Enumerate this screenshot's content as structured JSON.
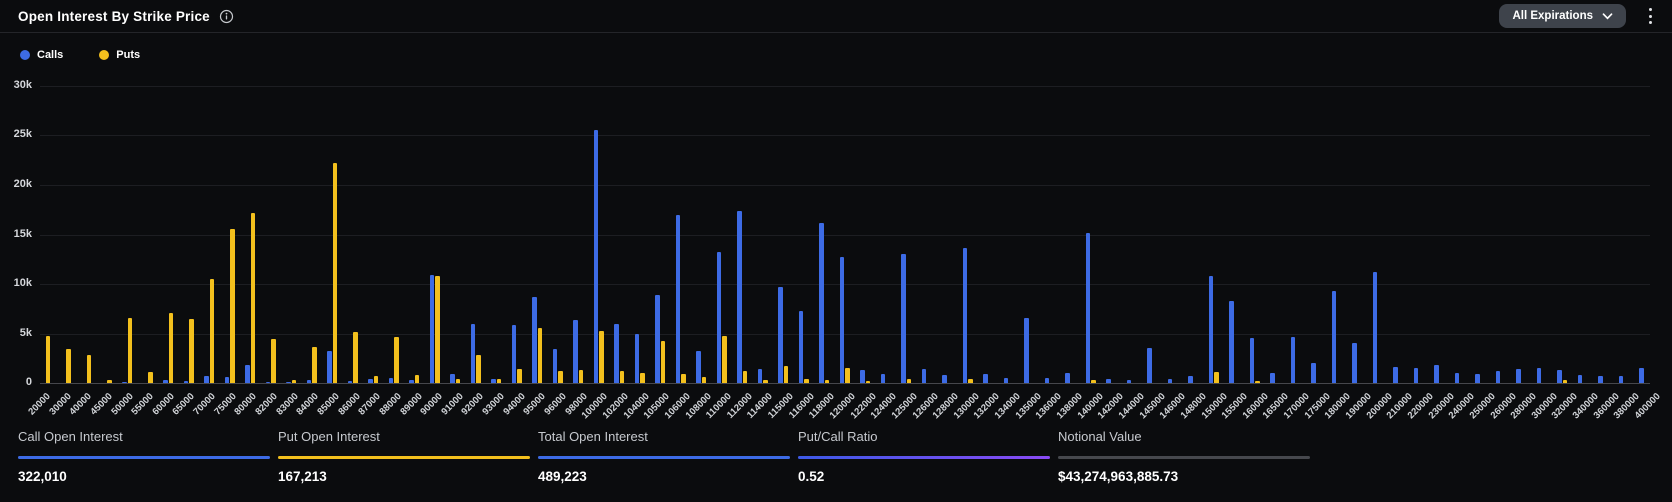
{
  "header": {
    "title": "Open Interest By Strike Price",
    "expirations_label": "All Expirations"
  },
  "legend": [
    {
      "label": "Calls",
      "color": "#3D6BE5"
    },
    {
      "label": "Puts",
      "color": "#F3C01D"
    }
  ],
  "colors": {
    "calls": "#3D6BE5",
    "puts": "#F3C01D",
    "background": "#0b0c0e",
    "gridline": "#1d1e22",
    "baseline": "#46474c"
  },
  "chart_data": {
    "type": "bar",
    "title": "Open Interest By Strike Price",
    "xlabel": "Strike Price",
    "ylabel": "Open Interest",
    "ylim": [
      0,
      30000
    ],
    "yticks": [
      "30k",
      "25k",
      "20k",
      "15k",
      "10k",
      "5k",
      "0"
    ],
    "grid": true,
    "legend_position": "top-left",
    "categories": [
      "20000",
      "30000",
      "40000",
      "45000",
      "50000",
      "55000",
      "60000",
      "65000",
      "70000",
      "75000",
      "80000",
      "82000",
      "83000",
      "84000",
      "85000",
      "86000",
      "87000",
      "88000",
      "89000",
      "90000",
      "91000",
      "92000",
      "93000",
      "94000",
      "95000",
      "96000",
      "98000",
      "100000",
      "102000",
      "104000",
      "105000",
      "106000",
      "108000",
      "110000",
      "112000",
      "114000",
      "115000",
      "116000",
      "118000",
      "120000",
      "122000",
      "124000",
      "125000",
      "126000",
      "128000",
      "130000",
      "132000",
      "134000",
      "135000",
      "136000",
      "138000",
      "140000",
      "142000",
      "144000",
      "145000",
      "146000",
      "148000",
      "150000",
      "155000",
      "160000",
      "165000",
      "170000",
      "175000",
      "180000",
      "190000",
      "200000",
      "210000",
      "220000",
      "230000",
      "240000",
      "250000",
      "260000",
      "280000",
      "300000",
      "320000",
      "340000",
      "360000",
      "380000",
      "400000"
    ],
    "series": [
      {
        "name": "Calls",
        "color": "#3D6BE5",
        "values": [
          0,
          0,
          0,
          0,
          150,
          0,
          300,
          250,
          700,
          600,
          1800,
          100,
          150,
          300,
          3200,
          200,
          400,
          500,
          300,
          10900,
          900,
          6000,
          400,
          5900,
          8700,
          3400,
          6400,
          25600,
          6000,
          5000,
          8900,
          17000,
          3200,
          13200,
          17400,
          1400,
          9700,
          7300,
          16200,
          12700,
          1300,
          900,
          13000,
          1400,
          800,
          13600,
          900,
          500,
          6600,
          500,
          1000,
          15200,
          400,
          300,
          3500,
          400,
          700,
          10800,
          8300,
          4500,
          1000,
          4600,
          2000,
          9300,
          4000,
          11200,
          1600,
          1500,
          1800,
          1000,
          900,
          1200,
          1400,
          1500,
          1300,
          800,
          700,
          700,
          1500
        ]
      },
      {
        "name": "Puts",
        "color": "#F3C01D",
        "values": [
          4700,
          3400,
          2800,
          300,
          6600,
          1100,
          7100,
          6500,
          10500,
          15600,
          17200,
          4400,
          300,
          3600,
          22200,
          5200,
          700,
          4600,
          800,
          10800,
          400,
          2800,
          400,
          1400,
          5600,
          1200,
          1300,
          5300,
          1200,
          1000,
          4200,
          900,
          600,
          4700,
          1200,
          300,
          1700,
          400,
          300,
          1500,
          200,
          0,
          400,
          0,
          0,
          400,
          0,
          0,
          0,
          0,
          0,
          300,
          0,
          0,
          0,
          0,
          0,
          1100,
          0,
          200,
          0,
          0,
          0,
          0,
          0,
          0,
          0,
          0,
          0,
          0,
          0,
          0,
          0,
          0,
          300,
          0,
          0,
          0,
          0
        ]
      }
    ]
  },
  "stats": [
    {
      "label": "Call Open Interest",
      "value": "322,010",
      "underline": "#3D6BE5"
    },
    {
      "label": "Put Open Interest",
      "value": "167,213",
      "underline": "#F3C01D"
    },
    {
      "label": "Total Open Interest",
      "value": "489,223",
      "underline": "#3D6BE5"
    },
    {
      "label": "Put/Call Ratio",
      "value": "0.52",
      "underline": "linear-gradient(90deg,#3D5AE8,#8A4BF5)"
    },
    {
      "label": "Notional Value",
      "value": "$43,274,963,885.73",
      "underline": "#46484D"
    }
  ]
}
